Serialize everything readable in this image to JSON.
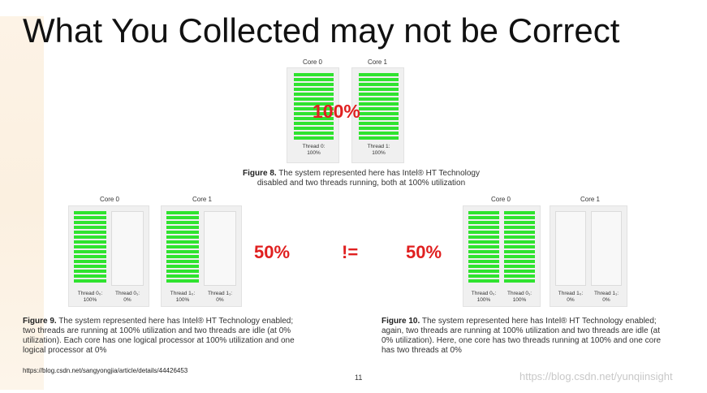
{
  "slide": {
    "title": "What You Collected may not be Correct",
    "url": "https://blog.csdn.net/sangyongjia/article/details/44426453",
    "page_number": "11",
    "watermark": "https://blog.csdn.net/yunqiinsight"
  },
  "colors": {
    "active": "#2fe32f",
    "highlight": "#e02020"
  },
  "fig8": {
    "core0_label": "Core 0",
    "core1_label": "Core 1",
    "thread0": [
      "Thread 0:",
      "100%"
    ],
    "thread1": [
      "Thread 1:",
      "100%"
    ],
    "overlay": "100%",
    "caption_bold": "Figure 8.",
    "caption_rest": "The system represented here has Intel® HT Technology",
    "caption_line2": "disabled and two threads running, both at 100% utilization"
  },
  "fig9": {
    "core0_label": "Core 0",
    "core1_label": "Core 1",
    "t00": [
      "Thread 0₀:",
      "100%"
    ],
    "t01": [
      "Thread 0₁:",
      "0%"
    ],
    "t10": [
      "Thread 1₀:",
      "100%"
    ],
    "t11": [
      "Thread 1₁:",
      "0%"
    ],
    "percent": "50%",
    "caption_bold": "Figure 9.",
    "caption_l1": "The system represented here has Intel® HT Technology enabled;",
    "caption_l2": "two threads are running at 100% utilization and two threads are idle (at 0%",
    "caption_l3": "utilization). Each core has one logical processor at 100% utilization and one",
    "caption_l4": "logical processor at 0%"
  },
  "neq": "!=",
  "fig10": {
    "core0_label": "Core 0",
    "core1_label": "Core 1",
    "t00": [
      "Thread 0₀:",
      "100%"
    ],
    "t01": [
      "Thread 0₁:",
      "100%"
    ],
    "t10": [
      "Thread 1₀:",
      "0%"
    ],
    "t11": [
      "Thread 1₁:",
      "0%"
    ],
    "percent": "50%",
    "caption_bold": "Figure 10.",
    "caption_l1": "The system represented here has Intel® HT Technology enabled;",
    "caption_l2": "again, two threads are running at 100% utilization and two threads are idle (at",
    "caption_l3": "0% utilization). Here, one core has two threads running at 100% and one core",
    "caption_l4": "has two threads at 0%"
  }
}
